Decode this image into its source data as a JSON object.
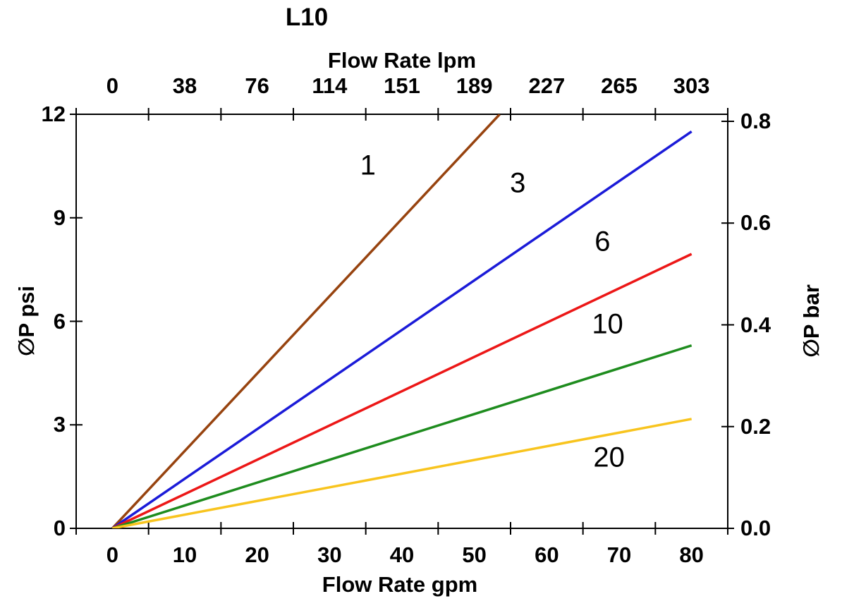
{
  "page": {
    "background": "#ffffff"
  },
  "chart_data": {
    "type": "line",
    "title": "L10",
    "grid": false,
    "legend": "none (inline series labels)",
    "axes": {
      "x_top": {
        "label": "Flow Rate lpm",
        "tick_labels": [
          "0",
          "38",
          "76",
          "114",
          "151",
          "189",
          "227",
          "265",
          "303"
        ]
      },
      "x_bottom": {
        "label": "Flow Rate gpm",
        "tick_labels": [
          "0",
          "10",
          "20",
          "30",
          "40",
          "50",
          "60",
          "70",
          "80"
        ],
        "range": [
          0,
          90
        ]
      },
      "y_left": {
        "label": "∅P psi",
        "tick_labels": [
          "0",
          "3",
          "6",
          "9",
          "12"
        ],
        "tick_values": [
          0,
          3,
          6,
          9,
          12
        ],
        "range": [
          0,
          12
        ]
      },
      "y_right": {
        "label": "∅P bar",
        "tick_labels": [
          "0.0",
          "0.2",
          "0.4",
          "0.6",
          "0.8"
        ],
        "tick_values": [
          0,
          0.2,
          0.4,
          0.6,
          0.8
        ],
        "range": [
          0,
          0.814
        ]
      }
    },
    "series": [
      {
        "name": "1",
        "color": "#97430F",
        "points_gpm_psi": [
          [
            0,
            0
          ],
          [
            53.5,
            12
          ]
        ],
        "note": "exits top of plot before 60 gpm",
        "label": {
          "text": "1",
          "x_gpm": 35.3,
          "y_psi": 10.5
        }
      },
      {
        "name": "3",
        "color": "#1B1BD8",
        "points_gpm_psi": [
          [
            0,
            0
          ],
          [
            80,
            11.5
          ]
        ],
        "label": {
          "text": "3",
          "x_gpm": 56.0,
          "y_psi": 10.0
        }
      },
      {
        "name": "6",
        "color": "#EC1717",
        "points_gpm_psi": [
          [
            0,
            0
          ],
          [
            80,
            7.95
          ]
        ],
        "label": {
          "text": "6",
          "x_gpm": 67.7,
          "y_psi": 8.3
        }
      },
      {
        "name": "10",
        "color": "#1E8C1E",
        "points_gpm_psi": [
          [
            0,
            0
          ],
          [
            80,
            5.3
          ]
        ],
        "label": {
          "text": "10",
          "x_gpm": 68.4,
          "y_psi": 5.9
        }
      },
      {
        "name": "20",
        "color": "#F8C41E",
        "points_gpm_psi": [
          [
            0,
            0
          ],
          [
            80,
            3.17
          ]
        ],
        "label": {
          "text": "20",
          "x_gpm": 68.6,
          "y_psi": 2.05
        }
      }
    ]
  }
}
